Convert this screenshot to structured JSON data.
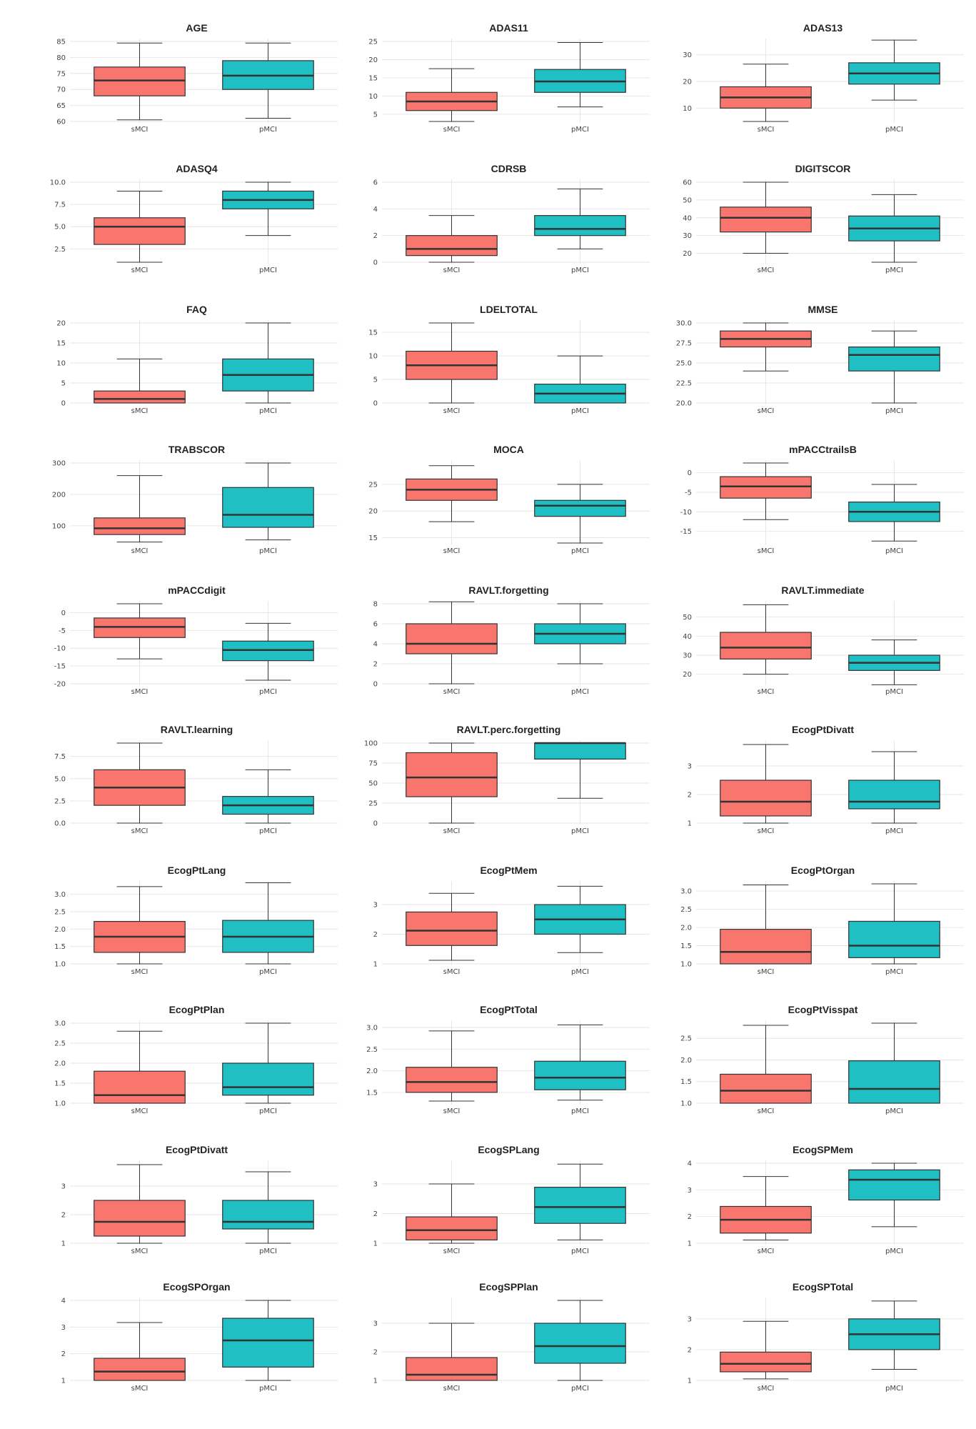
{
  "colors": {
    "sMCI": "#f8766d",
    "pMCI": "#1fbfc3",
    "median": "#333333",
    "grid": "#e6e6e6",
    "whisker": "#333333"
  },
  "groups": [
    "sMCI",
    "pMCI"
  ],
  "chart_data": [
    {
      "type": "box",
      "title": "AGE",
      "ylim": [
        60,
        85
      ],
      "yticks": [
        "60",
        "65",
        "70",
        "75",
        "80",
        "85"
      ],
      "boxes": [
        {
          "group": "sMCI",
          "min": 60.5,
          "q1": 68,
          "median": 72.8,
          "q3": 77,
          "max": 84.5
        },
        {
          "group": "pMCI",
          "min": 61,
          "q1": 70,
          "median": 74.3,
          "q3": 79,
          "max": 84.5
        }
      ]
    },
    {
      "type": "box",
      "title": "ADAS11",
      "ylim": [
        3,
        25
      ],
      "yticks": [
        "5",
        "10",
        "15",
        "20",
        "25"
      ],
      "boxes": [
        {
          "group": "sMCI",
          "min": 3,
          "q1": 6,
          "median": 8.5,
          "q3": 11,
          "max": 17.5
        },
        {
          "group": "pMCI",
          "min": 7,
          "q1": 11,
          "median": 14,
          "q3": 17.3,
          "max": 24.7
        }
      ]
    },
    {
      "type": "box",
      "title": "ADAS13",
      "ylim": [
        5,
        35
      ],
      "yticks": [
        "10",
        "20",
        "30"
      ],
      "boxes": [
        {
          "group": "sMCI",
          "min": 5,
          "q1": 10,
          "median": 14,
          "q3": 18,
          "max": 26.5
        },
        {
          "group": "pMCI",
          "min": 13,
          "q1": 19,
          "median": 23,
          "q3": 27,
          "max": 35.5
        }
      ]
    },
    {
      "type": "box",
      "title": "ADASQ4",
      "ylim": [
        1,
        10
      ],
      "yticks": [
        "2.5",
        "5.0",
        "7.5",
        "10.0"
      ],
      "boxes": [
        {
          "group": "sMCI",
          "min": 1,
          "q1": 3,
          "median": 5,
          "q3": 6,
          "max": 9
        },
        {
          "group": "pMCI",
          "min": 4,
          "q1": 7,
          "median": 8,
          "q3": 9,
          "max": 10
        }
      ]
    },
    {
      "type": "box",
      "title": "CDRSB",
      "ylim": [
        0,
        6
      ],
      "yticks": [
        "0",
        "2",
        "4",
        "6"
      ],
      "boxes": [
        {
          "group": "sMCI",
          "min": 0,
          "q1": 0.5,
          "median": 1,
          "q3": 2,
          "max": 3.5
        },
        {
          "group": "pMCI",
          "min": 1,
          "q1": 2,
          "median": 2.5,
          "q3": 3.5,
          "max": 5.5
        }
      ]
    },
    {
      "type": "box",
      "title": "DIGITSCOR",
      "ylim": [
        15,
        60
      ],
      "yticks": [
        "20",
        "30",
        "40",
        "50",
        "60"
      ],
      "boxes": [
        {
          "group": "sMCI",
          "min": 20,
          "q1": 32,
          "median": 40,
          "q3": 46,
          "max": 60
        },
        {
          "group": "pMCI",
          "min": 15,
          "q1": 27,
          "median": 34,
          "q3": 41,
          "max": 53
        }
      ]
    },
    {
      "type": "box",
      "title": "FAQ",
      "ylim": [
        0,
        20
      ],
      "yticks": [
        "0",
        "5",
        "10",
        "15",
        "20"
      ],
      "boxes": [
        {
          "group": "sMCI",
          "min": 0,
          "q1": 0,
          "median": 1,
          "q3": 3,
          "max": 11
        },
        {
          "group": "pMCI",
          "min": 0,
          "q1": 3,
          "median": 7,
          "q3": 11,
          "max": 20
        }
      ]
    },
    {
      "type": "box",
      "title": "LDELTOTAL",
      "ylim": [
        0,
        17
      ],
      "yticks": [
        "0",
        "5",
        "10",
        "15"
      ],
      "boxes": [
        {
          "group": "sMCI",
          "min": 0,
          "q1": 5,
          "median": 8,
          "q3": 11,
          "max": 17
        },
        {
          "group": "pMCI",
          "min": 0,
          "q1": 0,
          "median": 2,
          "q3": 4,
          "max": 10
        }
      ]
    },
    {
      "type": "box",
      "title": "MMSE",
      "ylim": [
        20,
        30
      ],
      "yticks": [
        "20.0",
        "22.5",
        "25.0",
        "27.5",
        "30.0"
      ],
      "boxes": [
        {
          "group": "sMCI",
          "min": 24,
          "q1": 27,
          "median": 28,
          "q3": 29,
          "max": 30
        },
        {
          "group": "pMCI",
          "min": 20,
          "q1": 24,
          "median": 26,
          "q3": 27,
          "max": 29
        }
      ]
    },
    {
      "type": "box",
      "title": "TRABSCOR",
      "ylim": [
        45,
        300
      ],
      "yticks": [
        "100",
        "200",
        "300"
      ],
      "boxes": [
        {
          "group": "sMCI",
          "min": 48,
          "q1": 72,
          "median": 92,
          "q3": 125,
          "max": 260
        },
        {
          "group": "pMCI",
          "min": 55,
          "q1": 95,
          "median": 135,
          "q3": 222,
          "max": 300
        }
      ]
    },
    {
      "type": "box",
      "title": "MOCA",
      "ylim": [
        14,
        29
      ],
      "yticks": [
        "15",
        "20",
        "25"
      ],
      "boxes": [
        {
          "group": "sMCI",
          "min": 18,
          "q1": 22,
          "median": 24,
          "q3": 26,
          "max": 28.5
        },
        {
          "group": "pMCI",
          "min": 14,
          "q1": 19,
          "median": 21,
          "q3": 22,
          "max": 25
        }
      ]
    },
    {
      "type": "box",
      "title": "mPACCtrailsB",
      "ylim": [
        -18,
        2.5
      ],
      "yticks": [
        "-15",
        "-10",
        "-5",
        "0"
      ],
      "boxes": [
        {
          "group": "sMCI",
          "min": -12,
          "q1": -6.5,
          "median": -3.5,
          "q3": -1,
          "max": 2.5
        },
        {
          "group": "pMCI",
          "min": -17.5,
          "q1": -12.5,
          "median": -10,
          "q3": -7.5,
          "max": -3
        }
      ]
    },
    {
      "type": "box",
      "title": "mPACCdigit",
      "ylim": [
        -20,
        2.5
      ],
      "yticks": [
        "-20",
        "-15",
        "-10",
        "-5",
        "0"
      ],
      "boxes": [
        {
          "group": "sMCI",
          "min": -13,
          "q1": -7,
          "median": -4,
          "q3": -1.5,
          "max": 2.5
        },
        {
          "group": "pMCI",
          "min": -19,
          "q1": -13.5,
          "median": -10.5,
          "q3": -8,
          "max": -3
        }
      ]
    },
    {
      "type": "box",
      "title": "RAVLT.forgetting",
      "ylim": [
        0,
        8
      ],
      "yticks": [
        "0",
        "2",
        "4",
        "6",
        "8"
      ],
      "boxes": [
        {
          "group": "sMCI",
          "min": 0,
          "q1": 3,
          "median": 4,
          "q3": 6,
          "max": 8.2
        },
        {
          "group": "pMCI",
          "min": 2,
          "q1": 4,
          "median": 5,
          "q3": 6,
          "max": 8
        }
      ]
    },
    {
      "type": "box",
      "title": "RAVLT.immediate",
      "ylim": [
        15,
        57
      ],
      "yticks": [
        "20",
        "30",
        "40",
        "50"
      ],
      "boxes": [
        {
          "group": "sMCI",
          "min": 20,
          "q1": 28,
          "median": 34,
          "q3": 42,
          "max": 56.5
        },
        {
          "group": "pMCI",
          "min": 14.5,
          "q1": 22,
          "median": 26,
          "q3": 30,
          "max": 38
        }
      ]
    },
    {
      "type": "box",
      "title": "RAVLT.learning",
      "ylim": [
        0,
        9
      ],
      "yticks": [
        "0.0",
        "2.5",
        "5.0",
        "7.5"
      ],
      "boxes": [
        {
          "group": "sMCI",
          "min": 0,
          "q1": 2,
          "median": 4,
          "q3": 6,
          "max": 9
        },
        {
          "group": "pMCI",
          "min": 0,
          "q1": 1,
          "median": 2,
          "q3": 3,
          "max": 6
        }
      ]
    },
    {
      "type": "box",
      "title": "RAVLT.perc.forgetting",
      "ylim": [
        0,
        100
      ],
      "yticks": [
        "0",
        "25",
        "50",
        "75",
        "100"
      ],
      "boxes": [
        {
          "group": "sMCI",
          "min": 0,
          "q1": 33,
          "median": 57,
          "q3": 88,
          "max": 100
        },
        {
          "group": "pMCI",
          "min": 31,
          "q1": 80,
          "median": 100,
          "q3": 100,
          "max": 100
        }
      ]
    },
    {
      "type": "box",
      "title": "EcogPtDivatt",
      "ylim": [
        1,
        3.8
      ],
      "yticks": [
        "1",
        "2",
        "3"
      ],
      "boxes": [
        {
          "group": "sMCI",
          "min": 1,
          "q1": 1.25,
          "median": 1.75,
          "q3": 2.5,
          "max": 3.75
        },
        {
          "group": "pMCI",
          "min": 1,
          "q1": 1.5,
          "median": 1.75,
          "q3": 2.5,
          "max": 3.5
        }
      ]
    },
    {
      "type": "box",
      "title": "EcogPtLang",
      "ylim": [
        1,
        3.3
      ],
      "yticks": [
        "1.0",
        "1.5",
        "2.0",
        "2.5",
        "3.0"
      ],
      "boxes": [
        {
          "group": "sMCI",
          "min": 1,
          "q1": 1.33,
          "median": 1.78,
          "q3": 2.22,
          "max": 3.22
        },
        {
          "group": "pMCI",
          "min": 1,
          "q1": 1.33,
          "median": 1.78,
          "q3": 2.25,
          "max": 3.33
        }
      ]
    },
    {
      "type": "box",
      "title": "EcogPtMem",
      "ylim": [
        1,
        3.7
      ],
      "yticks": [
        "1",
        "2",
        "3"
      ],
      "boxes": [
        {
          "group": "sMCI",
          "min": 1.12,
          "q1": 1.62,
          "median": 2.12,
          "q3": 2.75,
          "max": 3.38
        },
        {
          "group": "pMCI",
          "min": 1.38,
          "q1": 2,
          "median": 2.5,
          "q3": 3,
          "max": 3.62
        }
      ]
    },
    {
      "type": "box",
      "title": "EcogPtOrgan",
      "ylim": [
        1,
        3.2
      ],
      "yticks": [
        "1.0",
        "1.5",
        "2.0",
        "2.5",
        "3.0"
      ],
      "boxes": [
        {
          "group": "sMCI",
          "min": 1,
          "q1": 1,
          "median": 1.33,
          "q3": 1.95,
          "max": 3.17
        },
        {
          "group": "pMCI",
          "min": 1,
          "q1": 1.17,
          "median": 1.5,
          "q3": 2.17,
          "max": 3.2
        }
      ]
    },
    {
      "type": "box",
      "title": "EcogPtPlan",
      "ylim": [
        1,
        3
      ],
      "yticks": [
        "1.0",
        "1.5",
        "2.0",
        "2.5",
        "3.0"
      ],
      "boxes": [
        {
          "group": "sMCI",
          "min": 1,
          "q1": 1,
          "median": 1.2,
          "q3": 1.8,
          "max": 2.8
        },
        {
          "group": "pMCI",
          "min": 1,
          "q1": 1.2,
          "median": 1.4,
          "q3": 2,
          "max": 3
        }
      ]
    },
    {
      "type": "box",
      "title": "EcogPtTotal",
      "ylim": [
        1.25,
        3.1
      ],
      "yticks": [
        "1.5",
        "2.0",
        "2.5",
        "3.0"
      ],
      "boxes": [
        {
          "group": "sMCI",
          "min": 1.3,
          "q1": 1.5,
          "median": 1.74,
          "q3": 2.08,
          "max": 2.92
        },
        {
          "group": "pMCI",
          "min": 1.32,
          "q1": 1.56,
          "median": 1.84,
          "q3": 2.22,
          "max": 3.06
        }
      ]
    },
    {
      "type": "box",
      "title": "EcogPtVisspat",
      "ylim": [
        1,
        2.85
      ],
      "yticks": [
        "1.0",
        "1.5",
        "2.0",
        "2.5"
      ],
      "boxes": [
        {
          "group": "sMCI",
          "min": 1,
          "q1": 1,
          "median": 1.29,
          "q3": 1.67,
          "max": 2.8
        },
        {
          "group": "pMCI",
          "min": 1,
          "q1": 1,
          "median": 1.33,
          "q3": 1.98,
          "max": 2.85
        }
      ]
    },
    {
      "type": "box",
      "title": "EcogPtDivatt",
      "ylim": [
        1,
        3.8
      ],
      "yticks": [
        "1",
        "2",
        "3"
      ],
      "boxes": [
        {
          "group": "sMCI",
          "min": 1,
          "q1": 1.25,
          "median": 1.75,
          "q3": 2.5,
          "max": 3.75
        },
        {
          "group": "pMCI",
          "min": 1,
          "q1": 1.5,
          "median": 1.75,
          "q3": 2.5,
          "max": 3.5
        }
      ]
    },
    {
      "type": "box",
      "title": "EcogSPLang",
      "ylim": [
        1,
        3.7
      ],
      "yticks": [
        "1",
        "2",
        "3"
      ],
      "boxes": [
        {
          "group": "sMCI",
          "min": 1,
          "q1": 1.11,
          "median": 1.44,
          "q3": 1.89,
          "max": 3
        },
        {
          "group": "pMCI",
          "min": 1.11,
          "q1": 1.67,
          "median": 2.22,
          "q3": 2.89,
          "max": 3.67
        }
      ]
    },
    {
      "type": "box",
      "title": "EcogSPMem",
      "ylim": [
        1,
        4
      ],
      "yticks": [
        "1",
        "2",
        "3",
        "4"
      ],
      "boxes": [
        {
          "group": "sMCI",
          "min": 1.12,
          "q1": 1.38,
          "median": 1.88,
          "q3": 2.38,
          "max": 3.5
        },
        {
          "group": "pMCI",
          "min": 1.62,
          "q1": 2.62,
          "median": 3.38,
          "q3": 3.75,
          "max": 4
        }
      ]
    },
    {
      "type": "box",
      "title": "EcogSPOrgan",
      "ylim": [
        1,
        4
      ],
      "yticks": [
        "1",
        "2",
        "3",
        "4"
      ],
      "boxes": [
        {
          "group": "sMCI",
          "min": 1,
          "q1": 1,
          "median": 1.33,
          "q3": 1.83,
          "max": 3.17
        },
        {
          "group": "pMCI",
          "min": 1,
          "q1": 1.5,
          "median": 2.5,
          "q3": 3.33,
          "max": 4
        }
      ]
    },
    {
      "type": "box",
      "title": "EcogSPPlan",
      "ylim": [
        1,
        3.8
      ],
      "yticks": [
        "1",
        "2",
        "3"
      ],
      "boxes": [
        {
          "group": "sMCI",
          "min": 1,
          "q1": 1,
          "median": 1.2,
          "q3": 1.8,
          "max": 3
        },
        {
          "group": "pMCI",
          "min": 1,
          "q1": 1.6,
          "median": 2.2,
          "q3": 3,
          "max": 3.8
        }
      ]
    },
    {
      "type": "box",
      "title": "EcogSPTotal",
      "ylim": [
        1,
        3.6
      ],
      "yticks": [
        "1",
        "2",
        "3"
      ],
      "boxes": [
        {
          "group": "sMCI",
          "min": 1.05,
          "q1": 1.28,
          "median": 1.54,
          "q3": 1.92,
          "max": 2.92
        },
        {
          "group": "pMCI",
          "min": 1.36,
          "q1": 2,
          "median": 2.5,
          "q3": 3,
          "max": 3.58
        }
      ]
    }
  ]
}
